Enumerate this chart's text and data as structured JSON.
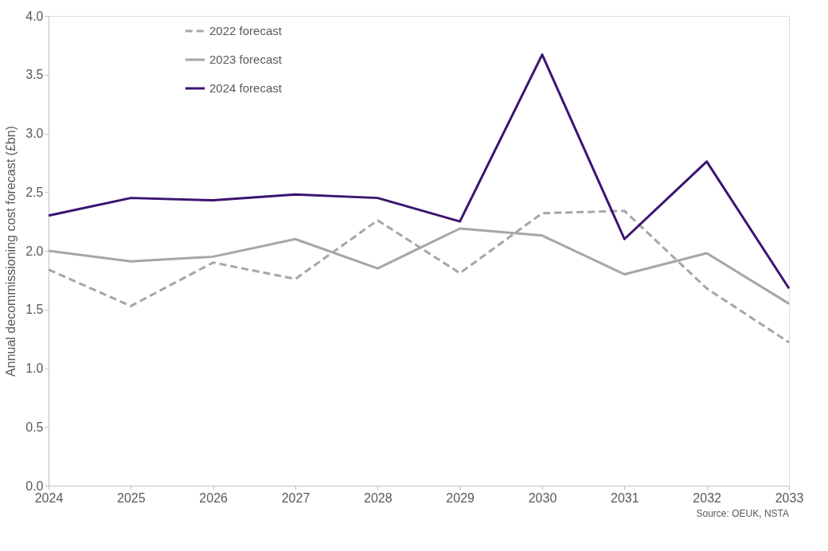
{
  "chart_data": {
    "type": "line",
    "ylabel": "Annual decommissioning  cost forecast (£bn)",
    "x": [
      2024,
      2025,
      2026,
      2027,
      2028,
      2029,
      2030,
      2031,
      2032,
      2033
    ],
    "xlim": [
      2024,
      2033
    ],
    "xticks": [
      2024,
      2025,
      2026,
      2027,
      2028,
      2029,
      2030,
      2031,
      2032,
      2033
    ],
    "ylim": [
      0,
      4
    ],
    "yticks": [
      {
        "value": 0,
        "label": "0.0"
      },
      {
        "value": 0.5,
        "label": "0.5"
      },
      {
        "value": 1,
        "label": "1.0"
      },
      {
        "value": 1.5,
        "label": "1.5"
      },
      {
        "value": 2,
        "label": "2.0"
      },
      {
        "value": 2.5,
        "label": "2.5"
      },
      {
        "value": 3,
        "label": "3.0"
      },
      {
        "value": 3.5,
        "label": "3.5"
      },
      {
        "value": 4,
        "label": "4.0"
      }
    ],
    "series": [
      {
        "name": "2022 forecast",
        "color": "#a6a6a6",
        "line_style": "dashed",
        "values": [
          1.84,
          1.53,
          1.9,
          1.76,
          2.26,
          1.81,
          2.32,
          2.34,
          1.68,
          1.22
        ]
      },
      {
        "name": "2023 forecast",
        "color": "#a6a6a6",
        "line_style": "solid",
        "values": [
          2.0,
          1.91,
          1.95,
          2.1,
          1.85,
          2.19,
          2.13,
          1.8,
          1.98,
          1.55
        ]
      },
      {
        "name": "2024 forecast",
        "color": "#3b1470",
        "line_style": "solid",
        "values": [
          2.3,
          2.45,
          2.43,
          2.48,
          2.45,
          2.25,
          3.67,
          2.1,
          2.76,
          1.68
        ]
      }
    ],
    "legend": "top left",
    "grid": false,
    "marker": "none",
    "annotations": [
      "Source: OEUK, NSTA"
    ]
  }
}
